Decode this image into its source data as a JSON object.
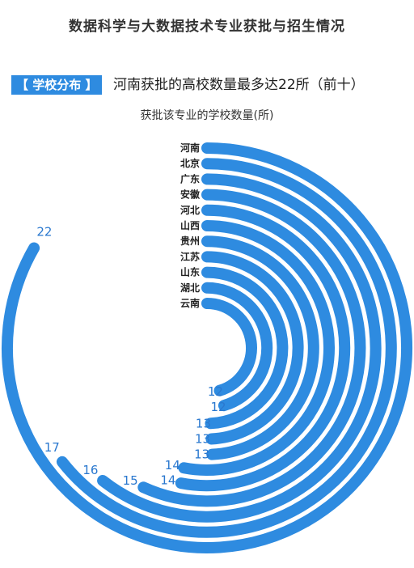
{
  "title": "数据科学与大数据技术专业获批与招生情况",
  "tag": "【 学校分布 】",
  "headline": "河南获批的高校数量最多达22所（前十）",
  "subtitle": "获批该专业的学校数量(所)",
  "colors": {
    "accent": "#2e8be0",
    "value_text": "#2a78cf"
  },
  "chart_data": {
    "type": "radial-bar",
    "title": "获批该专业的学校数量(所)",
    "categories": [
      "河南",
      "北京",
      "广东",
      "安徽",
      "河北",
      "山西",
      "贵州",
      "江苏",
      "山东",
      "湖北",
      "云南"
    ],
    "values": [
      22,
      17,
      16,
      15,
      14,
      14,
      13,
      13,
      13,
      12,
      12
    ],
    "unit": "所"
  }
}
